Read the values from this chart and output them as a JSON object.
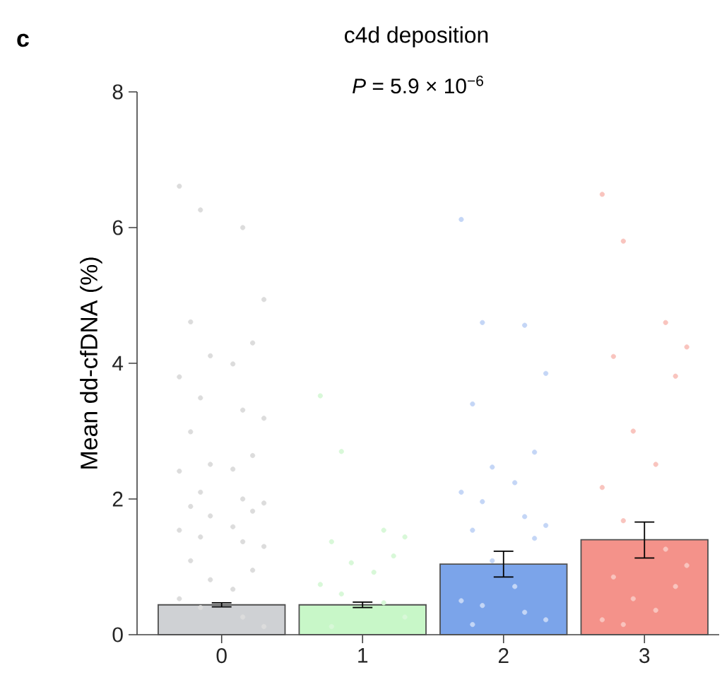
{
  "chart_data": {
    "type": "bar",
    "title": "c4d deposition",
    "ylabel": "Mean dd-cfDNA (%)",
    "annotations": [
      "c",
      "*P* = 5.9 × 10$^{−6}$"
    ],
    "categories": [
      "0",
      "1",
      "2",
      "3"
    ],
    "ylim": [
      0,
      8
    ],
    "yticks": [
      0,
      2,
      4,
      6,
      8
    ],
    "series": [
      {
        "type": "bar",
        "values": [
          0.44,
          0.44,
          1.04,
          1.4
        ],
        "colors": [
          "#cfd1d4",
          "#c8f7c8",
          "#7ba4ea",
          "#f4928a"
        ],
        "errors": [
          0.03,
          0.04,
          [
            0.85,
            1.23
          ],
          [
            1.13,
            1.66
          ]
        ]
      },
      {
        "type": "scatter",
        "marker": "circle",
        "color": "#dcdcdc",
        "x": [
          "0",
          "0",
          "0",
          "0",
          "0",
          "0",
          "0",
          "0",
          "0",
          "0",
          "0",
          "0",
          "0",
          "0",
          "0",
          "0",
          "0",
          "0",
          "0",
          "0",
          "0",
          "0",
          "0",
          "0",
          "0",
          "0",
          "0",
          "0",
          "0",
          "0",
          "0",
          "0",
          "0",
          "0",
          "0",
          "0"
        ],
        "values": [
          6.61,
          6.26,
          6.0,
          4.94,
          4.61,
          4.3,
          4.11,
          3.99,
          3.8,
          3.49,
          3.31,
          3.19,
          2.99,
          2.64,
          2.51,
          2.44,
          2.41,
          2.1,
          2.0,
          1.94,
          1.89,
          1.82,
          1.75,
          1.59,
          1.54,
          1.44,
          1.37,
          1.3,
          1.09,
          0.95,
          0.81,
          0.67,
          0.53,
          0.4,
          0.26,
          0.12
        ]
      },
      {
        "type": "scatter",
        "marker": "circle",
        "color": "#d8f8d8",
        "x": [
          "1",
          "1",
          "1",
          "1",
          "1",
          "1",
          "1",
          "1",
          "1",
          "1",
          "1",
          "1",
          "1"
        ],
        "values": [
          3.52,
          2.7,
          1.54,
          1.44,
          1.37,
          1.16,
          1.06,
          0.92,
          0.74,
          0.6,
          0.47,
          0.26,
          0.12
        ]
      },
      {
        "type": "scatter",
        "marker": "circle",
        "color": "#c4d6f6",
        "x": [
          "2",
          "2",
          "2",
          "2",
          "2",
          "2",
          "2",
          "2",
          "2",
          "2",
          "2",
          "2",
          "2",
          "2",
          "2",
          "2",
          "2",
          "2",
          "2",
          "2",
          "2"
        ],
        "values": [
          6.12,
          4.6,
          4.56,
          3.85,
          3.4,
          2.69,
          2.47,
          2.24,
          2.1,
          1.96,
          1.74,
          1.61,
          1.54,
          1.42,
          1.09,
          0.71,
          0.5,
          0.43,
          0.33,
          0.22,
          0.15
        ]
      },
      {
        "type": "scatter",
        "marker": "circle",
        "color": "#f9c4be",
        "x": [
          "3",
          "3",
          "3",
          "3",
          "3",
          "3",
          "3",
          "3",
          "3",
          "3",
          "3",
          "3",
          "3",
          "3",
          "3",
          "3",
          "3",
          "3"
        ],
        "values": [
          6.49,
          5.8,
          4.6,
          4.24,
          4.1,
          3.81,
          3.0,
          2.51,
          2.17,
          1.68,
          1.26,
          1.02,
          0.85,
          0.71,
          0.53,
          0.36,
          0.22,
          0.15
        ]
      }
    ]
  }
}
